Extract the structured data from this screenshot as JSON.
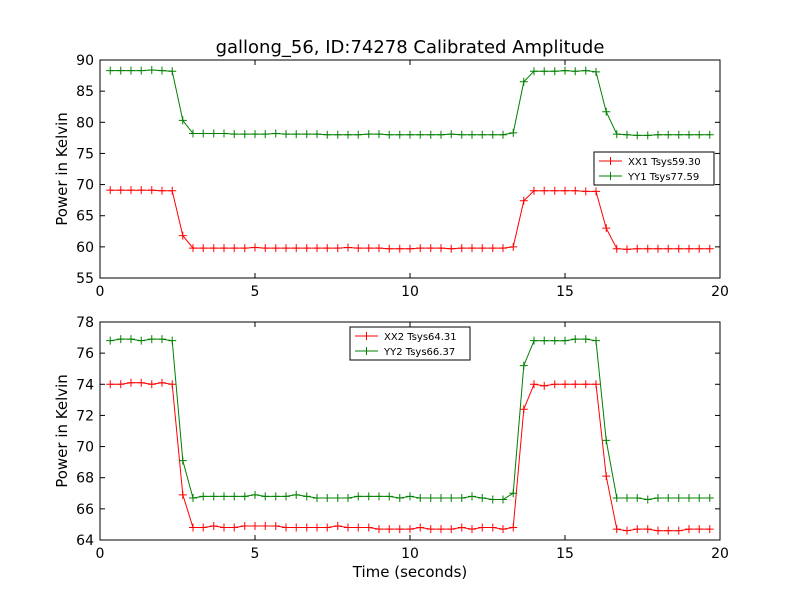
{
  "title": "gallong_56, ID:74278 Calibrated Amplitude",
  "colors": {
    "red": "#ff0000",
    "green": "#008000"
  },
  "chart_data": [
    {
      "type": "line",
      "ylabel": "Power in Kelvin",
      "xlabel": "",
      "xlim": [
        0,
        20
      ],
      "ylim": [
        55,
        90
      ],
      "xticks": [
        "0",
        "5",
        "10",
        "15",
        "20"
      ],
      "yticks": [
        "55",
        "60",
        "65",
        "70",
        "75",
        "80",
        "85",
        "90"
      ],
      "legend_position": "right",
      "x": [
        0.33,
        0.67,
        1.0,
        1.33,
        1.67,
        2.0,
        2.33,
        2.67,
        3.0,
        3.33,
        3.67,
        4.0,
        4.33,
        4.67,
        5.0,
        5.33,
        5.67,
        6.0,
        6.33,
        6.67,
        7.0,
        7.33,
        7.67,
        8.0,
        8.33,
        8.67,
        9.0,
        9.33,
        9.67,
        10.0,
        10.33,
        10.67,
        11.0,
        11.33,
        11.67,
        12.0,
        12.33,
        12.67,
        13.0,
        13.33,
        13.67,
        14.0,
        14.33,
        14.67,
        15.0,
        15.33,
        15.67,
        16.0,
        16.33,
        16.67,
        17.0,
        17.33,
        17.67,
        18.0,
        18.33,
        18.67,
        19.0,
        19.33,
        19.67
      ],
      "series": [
        {
          "name": "XX1 Tsys59.30",
          "color": "#ff0000",
          "values": [
            69.1,
            69.1,
            69.1,
            69.1,
            69.1,
            69.0,
            69.0,
            61.8,
            59.8,
            59.8,
            59.8,
            59.8,
            59.8,
            59.8,
            59.9,
            59.8,
            59.8,
            59.8,
            59.8,
            59.8,
            59.8,
            59.8,
            59.8,
            59.9,
            59.8,
            59.8,
            59.8,
            59.7,
            59.7,
            59.7,
            59.8,
            59.8,
            59.8,
            59.7,
            59.8,
            59.8,
            59.8,
            59.8,
            59.8,
            60.0,
            67.4,
            69.0,
            69.0,
            69.0,
            69.0,
            69.0,
            68.9,
            68.9,
            63.0,
            59.7,
            59.6,
            59.7,
            59.7,
            59.7,
            59.7,
            59.7,
            59.7,
            59.7,
            59.7
          ]
        },
        {
          "name": "YY1 Tsys77.59",
          "color": "#008000",
          "values": [
            88.3,
            88.3,
            88.3,
            88.3,
            88.4,
            88.3,
            88.2,
            80.3,
            78.2,
            78.2,
            78.2,
            78.2,
            78.1,
            78.1,
            78.1,
            78.1,
            78.2,
            78.1,
            78.1,
            78.1,
            78.1,
            78.0,
            78.0,
            78.0,
            78.0,
            78.1,
            78.1,
            78.0,
            78.0,
            78.0,
            78.0,
            78.0,
            78.0,
            78.1,
            78.0,
            78.0,
            78.0,
            78.0,
            78.0,
            78.3,
            86.5,
            88.2,
            88.2,
            88.2,
            88.3,
            88.2,
            88.3,
            88.1,
            81.7,
            78.1,
            78.0,
            77.9,
            77.9,
            78.0,
            78.0,
            78.0,
            78.0,
            78.0,
            78.0
          ]
        }
      ]
    },
    {
      "type": "line",
      "ylabel": "Power in Kelvin",
      "xlabel": "Time (seconds)",
      "xlim": [
        0,
        20
      ],
      "ylim": [
        64,
        78
      ],
      "xticks": [
        "0",
        "5",
        "10",
        "15",
        "20"
      ],
      "yticks": [
        "64",
        "66",
        "68",
        "70",
        "72",
        "74",
        "76",
        "78"
      ],
      "legend_position": "upper center",
      "x": [
        0.33,
        0.67,
        1.0,
        1.33,
        1.67,
        2.0,
        2.33,
        2.67,
        3.0,
        3.33,
        3.67,
        4.0,
        4.33,
        4.67,
        5.0,
        5.33,
        5.67,
        6.0,
        6.33,
        6.67,
        7.0,
        7.33,
        7.67,
        8.0,
        8.33,
        8.67,
        9.0,
        9.33,
        9.67,
        10.0,
        10.33,
        10.67,
        11.0,
        11.33,
        11.67,
        12.0,
        12.33,
        12.67,
        13.0,
        13.33,
        13.67,
        14.0,
        14.33,
        14.67,
        15.0,
        15.33,
        15.67,
        16.0,
        16.33,
        16.67,
        17.0,
        17.33,
        17.67,
        18.0,
        18.33,
        18.67,
        19.0,
        19.33,
        19.67
      ],
      "series": [
        {
          "name": "XX2 Tsys64.31",
          "color": "#ff0000",
          "values": [
            74.0,
            74.0,
            74.1,
            74.1,
            74.0,
            74.1,
            74.0,
            66.9,
            64.8,
            64.8,
            64.9,
            64.8,
            64.8,
            64.9,
            64.9,
            64.9,
            64.9,
            64.8,
            64.8,
            64.8,
            64.8,
            64.8,
            64.9,
            64.8,
            64.8,
            64.8,
            64.7,
            64.7,
            64.7,
            64.7,
            64.8,
            64.7,
            64.7,
            64.7,
            64.8,
            64.7,
            64.8,
            64.8,
            64.7,
            64.8,
            72.4,
            74.0,
            73.9,
            74.0,
            74.0,
            74.0,
            74.0,
            74.0,
            68.1,
            64.7,
            64.6,
            64.7,
            64.7,
            64.6,
            64.6,
            64.6,
            64.7,
            64.7,
            64.7
          ]
        },
        {
          "name": "YY2 Tsys66.37",
          "color": "#008000",
          "values": [
            76.8,
            76.9,
            76.9,
            76.8,
            76.9,
            76.9,
            76.8,
            69.1,
            66.7,
            66.8,
            66.8,
            66.8,
            66.8,
            66.8,
            66.9,
            66.8,
            66.8,
            66.8,
            66.9,
            66.8,
            66.7,
            66.7,
            66.7,
            66.7,
            66.8,
            66.8,
            66.8,
            66.8,
            66.7,
            66.8,
            66.7,
            66.7,
            66.7,
            66.7,
            66.7,
            66.8,
            66.7,
            66.6,
            66.6,
            67.0,
            75.2,
            76.8,
            76.8,
            76.8,
            76.8,
            76.9,
            76.9,
            76.8,
            70.4,
            66.7,
            66.7,
            66.7,
            66.6,
            66.7,
            66.7,
            66.7,
            66.7,
            66.7,
            66.7
          ]
        }
      ]
    }
  ]
}
